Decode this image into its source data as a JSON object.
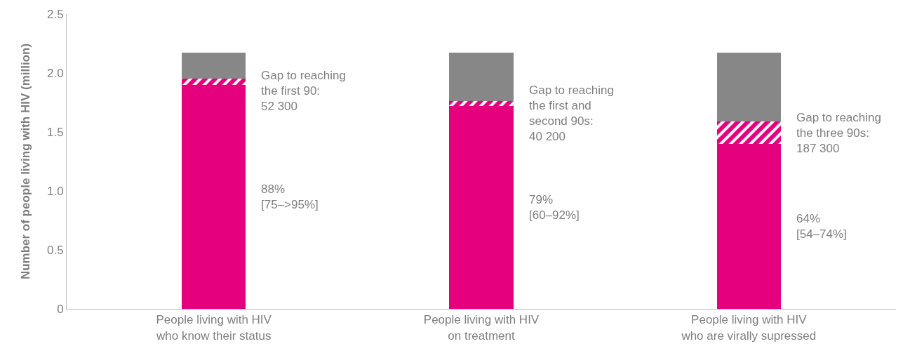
{
  "chart_data": {
    "type": "bar",
    "stacked": true,
    "ylabel": "Number of people living with HIV (million)",
    "categories": [
      "People living with HIV\nwho know their status",
      "People living with HIV\non treatment",
      "People living with HIV\nwho are virally supressed"
    ],
    "series": [
      {
        "color": "#e5007d",
        "values": [
          1.9,
          1.72,
          1.4
        ]
      },
      {
        "color": "#e5007d",
        "values": [
          0.05,
          0.04,
          0.19
        ]
      },
      {
        "color": "#878787",
        "values": [
          0.22,
          0.41,
          0.58
        ]
      }
    ],
    "ylim": [
      0,
      2.5
    ],
    "yticks": [
      0,
      {
        "value": 0.5,
        "label": "0.5"
      },
      {
        "value": 1,
        "label": "1.0"
      },
      {
        "value": 1.5,
        "label": "1.5"
      },
      {
        "value": 2,
        "label": "2.0"
      },
      {
        "value": 2.5,
        "label": "2.5"
      }
    ],
    "grid": false,
    "annotations": [
      "Gap to reaching\nthe first 90:\n52 300",
      "88%\n[75–>95%]",
      "Gap to reaching\nthe first and\nsecond 90s:\n40 200",
      "79%\n[60–92%]",
      "Gap to reaching\nthe three 90s:\n187 300",
      "64%\n[54–74%]"
    ]
  }
}
